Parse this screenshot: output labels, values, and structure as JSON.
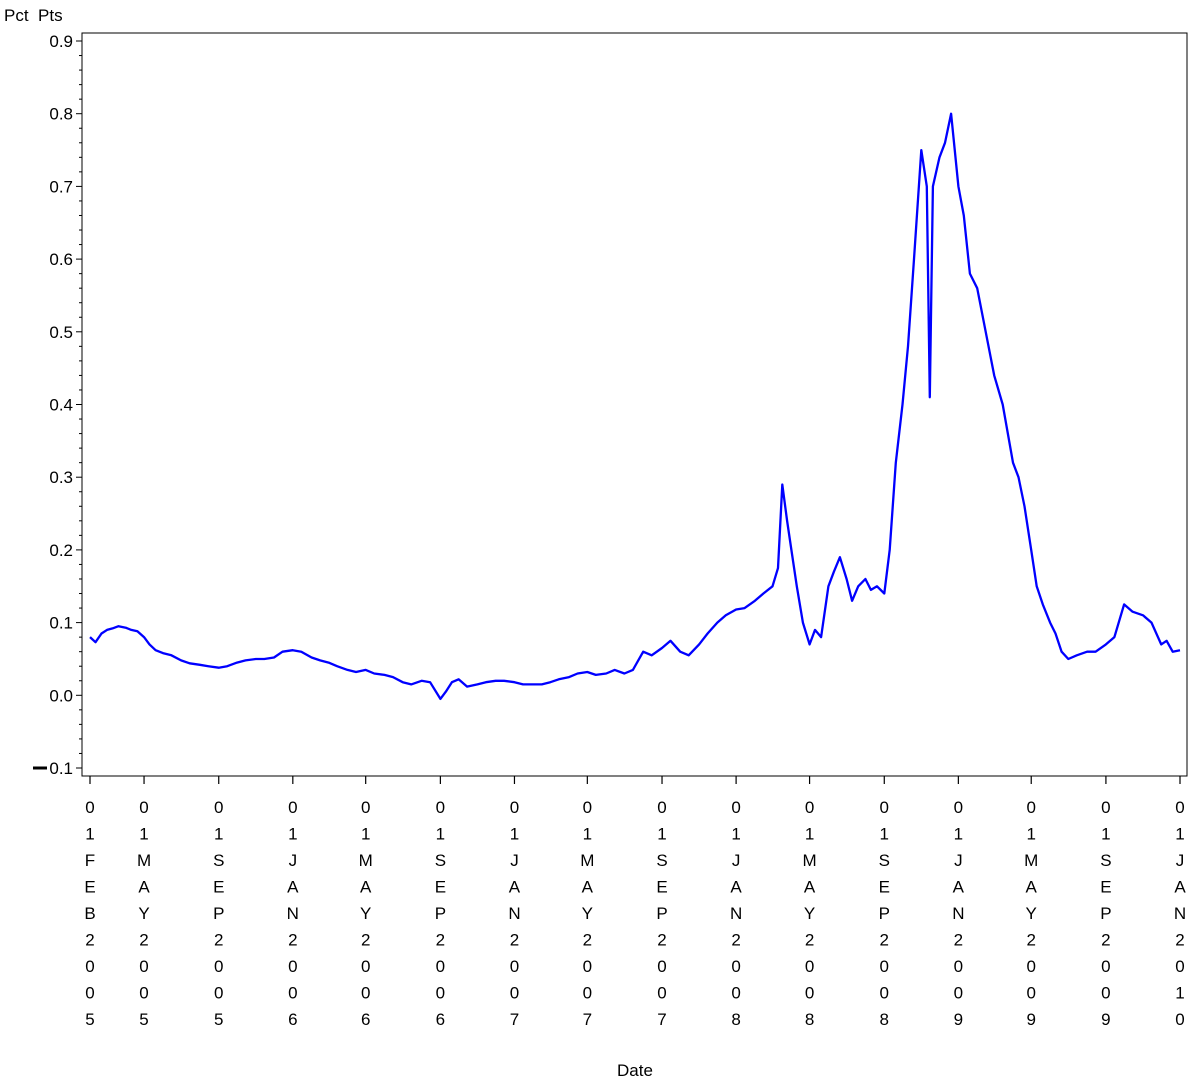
{
  "chart_data": {
    "type": "line",
    "ylabel": "Pct  Pts",
    "xlabel": "Date",
    "ylim": [
      -0.1,
      0.9
    ],
    "yticks": [
      "-0.1",
      "0.0",
      "0.1",
      "0.2",
      "0.3",
      "0.4",
      "0.5",
      "0.6",
      "0.7",
      "0.8",
      "0.9"
    ],
    "xlim": [
      "2005-02-01",
      "2010-01-01"
    ],
    "xticks": [
      {
        "date": "2005-02-01",
        "label": "01FEB2005"
      },
      {
        "date": "2005-05-01",
        "label": "01MAY2005"
      },
      {
        "date": "2005-09-01",
        "label": "01SEP2005"
      },
      {
        "date": "2006-01-01",
        "label": "01JAN2006"
      },
      {
        "date": "2006-05-01",
        "label": "01MAY2006"
      },
      {
        "date": "2006-09-01",
        "label": "01SEP2006"
      },
      {
        "date": "2007-01-01",
        "label": "01JAN2007"
      },
      {
        "date": "2007-05-01",
        "label": "01MAY2007"
      },
      {
        "date": "2007-09-01",
        "label": "01SEP2007"
      },
      {
        "date": "2008-01-01",
        "label": "01JAN2008"
      },
      {
        "date": "2008-05-01",
        "label": "01MAY2008"
      },
      {
        "date": "2008-09-01",
        "label": "01SEP2008"
      },
      {
        "date": "2009-01-01",
        "label": "01JAN2009"
      },
      {
        "date": "2009-05-01",
        "label": "01MAY2009"
      },
      {
        "date": "2009-09-01",
        "label": "01SEP2009"
      },
      {
        "date": "2010-01-01",
        "label": "01JAN2010"
      }
    ],
    "grid": false,
    "series": [
      {
        "color": "#0000ff",
        "points": [
          [
            "2005-02-01",
            0.08
          ],
          [
            "2005-02-10",
            0.073
          ],
          [
            "2005-02-20",
            0.085
          ],
          [
            "2005-03-01",
            0.09
          ],
          [
            "2005-03-10",
            0.092
          ],
          [
            "2005-03-20",
            0.095
          ],
          [
            "2005-04-01",
            0.093
          ],
          [
            "2005-04-10",
            0.09
          ],
          [
            "2005-04-20",
            0.088
          ],
          [
            "2005-05-01",
            0.08
          ],
          [
            "2005-05-10",
            0.07
          ],
          [
            "2005-05-20",
            0.062
          ],
          [
            "2005-06-01",
            0.058
          ],
          [
            "2005-06-15",
            0.055
          ],
          [
            "2005-07-01",
            0.048
          ],
          [
            "2005-07-15",
            0.044
          ],
          [
            "2005-08-01",
            0.042
          ],
          [
            "2005-08-15",
            0.04
          ],
          [
            "2005-09-01",
            0.038
          ],
          [
            "2005-09-15",
            0.04
          ],
          [
            "2005-10-01",
            0.045
          ],
          [
            "2005-10-15",
            0.048
          ],
          [
            "2005-11-01",
            0.05
          ],
          [
            "2005-11-15",
            0.05
          ],
          [
            "2005-12-01",
            0.052
          ],
          [
            "2005-12-15",
            0.06
          ],
          [
            "2006-01-01",
            0.062
          ],
          [
            "2006-01-15",
            0.06
          ],
          [
            "2006-02-01",
            0.052
          ],
          [
            "2006-02-15",
            0.048
          ],
          [
            "2006-03-01",
            0.045
          ],
          [
            "2006-03-15",
            0.04
          ],
          [
            "2006-04-01",
            0.035
          ],
          [
            "2006-04-15",
            0.032
          ],
          [
            "2006-05-01",
            0.035
          ],
          [
            "2006-05-15",
            0.03
          ],
          [
            "2006-06-01",
            0.028
          ],
          [
            "2006-06-15",
            0.025
          ],
          [
            "2006-07-01",
            0.018
          ],
          [
            "2006-07-15",
            0.015
          ],
          [
            "2006-08-01",
            0.02
          ],
          [
            "2006-08-15",
            0.018
          ],
          [
            "2006-09-01",
            -0.005
          ],
          [
            "2006-09-10",
            0.005
          ],
          [
            "2006-09-20",
            0.018
          ],
          [
            "2006-10-01",
            0.022
          ],
          [
            "2006-10-15",
            0.012
          ],
          [
            "2006-11-01",
            0.015
          ],
          [
            "2006-11-15",
            0.018
          ],
          [
            "2006-12-01",
            0.02
          ],
          [
            "2006-12-15",
            0.02
          ],
          [
            "2007-01-01",
            0.018
          ],
          [
            "2007-01-15",
            0.015
          ],
          [
            "2007-02-01",
            0.015
          ],
          [
            "2007-02-15",
            0.015
          ],
          [
            "2007-03-01",
            0.018
          ],
          [
            "2007-03-15",
            0.022
          ],
          [
            "2007-04-01",
            0.025
          ],
          [
            "2007-04-15",
            0.03
          ],
          [
            "2007-05-01",
            0.032
          ],
          [
            "2007-05-15",
            0.028
          ],
          [
            "2007-06-01",
            0.03
          ],
          [
            "2007-06-15",
            0.035
          ],
          [
            "2007-07-01",
            0.03
          ],
          [
            "2007-07-15",
            0.035
          ],
          [
            "2007-08-01",
            0.06
          ],
          [
            "2007-08-15",
            0.055
          ],
          [
            "2007-09-01",
            0.065
          ],
          [
            "2007-09-15",
            0.075
          ],
          [
            "2007-10-01",
            0.06
          ],
          [
            "2007-10-15",
            0.055
          ],
          [
            "2007-11-01",
            0.07
          ],
          [
            "2007-11-15",
            0.085
          ],
          [
            "2007-12-01",
            0.1
          ],
          [
            "2007-12-15",
            0.11
          ],
          [
            "2008-01-01",
            0.118
          ],
          [
            "2008-01-15",
            0.12
          ],
          [
            "2008-02-01",
            0.13
          ],
          [
            "2008-02-15",
            0.14
          ],
          [
            "2008-03-01",
            0.15
          ],
          [
            "2008-03-10",
            0.175
          ],
          [
            "2008-03-17",
            0.29
          ],
          [
            "2008-03-25",
            0.24
          ],
          [
            "2008-04-01",
            0.2
          ],
          [
            "2008-04-10",
            0.15
          ],
          [
            "2008-04-20",
            0.1
          ],
          [
            "2008-05-01",
            0.07
          ],
          [
            "2008-05-10",
            0.09
          ],
          [
            "2008-05-20",
            0.08
          ],
          [
            "2008-06-01",
            0.15
          ],
          [
            "2008-06-10",
            0.17
          ],
          [
            "2008-06-20",
            0.19
          ],
          [
            "2008-07-01",
            0.16
          ],
          [
            "2008-07-10",
            0.13
          ],
          [
            "2008-07-20",
            0.15
          ],
          [
            "2008-08-01",
            0.16
          ],
          [
            "2008-08-10",
            0.145
          ],
          [
            "2008-08-20",
            0.15
          ],
          [
            "2008-09-01",
            0.14
          ],
          [
            "2008-09-10",
            0.2
          ],
          [
            "2008-09-20",
            0.32
          ],
          [
            "2008-10-01",
            0.4
          ],
          [
            "2008-10-10",
            0.48
          ],
          [
            "2008-10-20",
            0.6
          ],
          [
            "2008-11-01",
            0.75
          ],
          [
            "2008-11-10",
            0.7
          ],
          [
            "2008-11-15",
            0.41
          ],
          [
            "2008-11-20",
            0.7
          ],
          [
            "2008-12-01",
            0.74
          ],
          [
            "2008-12-10",
            0.76
          ],
          [
            "2008-12-20",
            0.8
          ],
          [
            "2009-01-01",
            0.7
          ],
          [
            "2009-01-10",
            0.66
          ],
          [
            "2009-01-20",
            0.58
          ],
          [
            "2009-02-01",
            0.56
          ],
          [
            "2009-02-15",
            0.5
          ],
          [
            "2009-03-01",
            0.44
          ],
          [
            "2009-03-15",
            0.4
          ],
          [
            "2009-04-01",
            0.32
          ],
          [
            "2009-04-10",
            0.3
          ],
          [
            "2009-04-20",
            0.26
          ],
          [
            "2009-05-01",
            0.2
          ],
          [
            "2009-05-10",
            0.15
          ],
          [
            "2009-05-20",
            0.125
          ],
          [
            "2009-06-01",
            0.1
          ],
          [
            "2009-06-10",
            0.085
          ],
          [
            "2009-06-20",
            0.06
          ],
          [
            "2009-07-01",
            0.05
          ],
          [
            "2009-07-15",
            0.055
          ],
          [
            "2009-08-01",
            0.06
          ],
          [
            "2009-08-15",
            0.06
          ],
          [
            "2009-09-01",
            0.07
          ],
          [
            "2009-09-15",
            0.08
          ],
          [
            "2009-10-01",
            0.125
          ],
          [
            "2009-10-15",
            0.115
          ],
          [
            "2009-11-01",
            0.11
          ],
          [
            "2009-11-15",
            0.1
          ],
          [
            "2009-12-01",
            0.07
          ],
          [
            "2009-12-10",
            0.075
          ],
          [
            "2009-12-20",
            0.06
          ],
          [
            "2010-01-01",
            0.062
          ]
        ]
      }
    ]
  }
}
